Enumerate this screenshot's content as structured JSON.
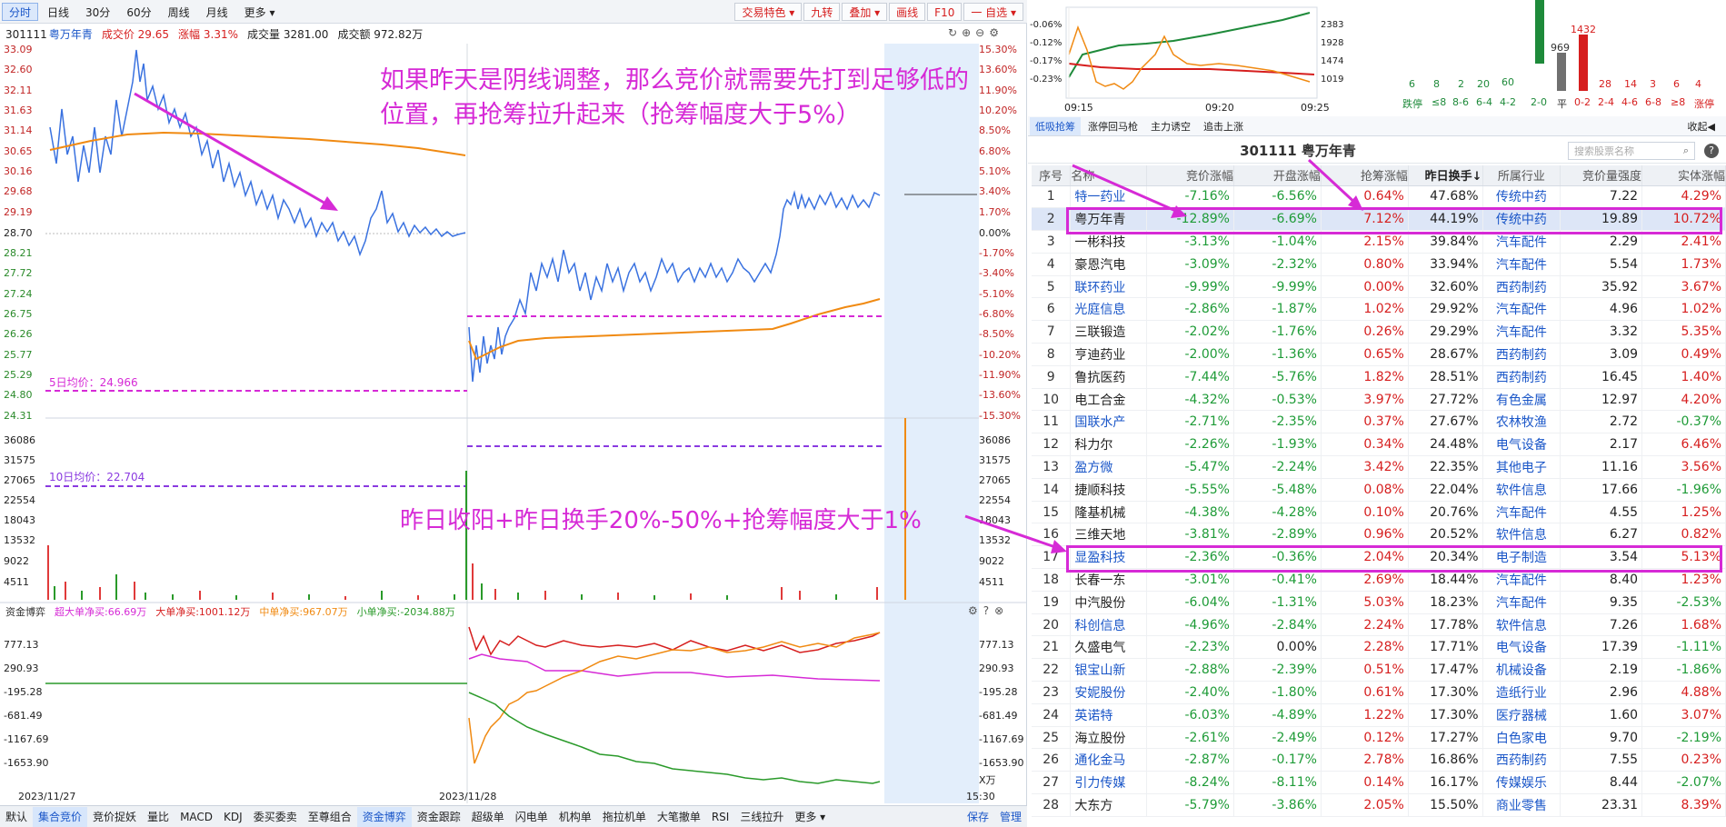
{
  "toolbar": {
    "periods": [
      "分时",
      "日线",
      "30分",
      "60分",
      "周线",
      "月线",
      "更多 ▾"
    ],
    "right": [
      "交易特色 ▾",
      "九转",
      "叠加 ▾",
      "画线",
      "F10",
      "一 自选 ▾"
    ]
  },
  "info": {
    "code": "301111",
    "name": "粤万年青",
    "price_label": "成交价",
    "price": "29.65",
    "change_label": "涨幅",
    "change": "3.31%",
    "vol": "成交量 3281.00",
    "amount": "成交额 972.82万"
  },
  "price_axis_left": [
    "33.09",
    "32.60",
    "32.11",
    "31.63",
    "31.14",
    "30.65",
    "30.16",
    "29.68",
    "29.19",
    "28.70",
    "28.21",
    "27.72",
    "27.24",
    "26.75",
    "26.26",
    "25.77",
    "25.29",
    "24.80",
    "24.31"
  ],
  "price_axis_right": [
    "15.30%",
    "13.60%",
    "11.90%",
    "10.20%",
    "8.50%",
    "6.80%",
    "5.10%",
    "3.40%",
    "1.70%",
    "0.00%",
    "-1.70%",
    "-3.40%",
    "-5.10%",
    "-6.80%",
    "-8.50%",
    "-10.20%",
    "-11.90%",
    "-13.60%",
    "-15.30%"
  ],
  "vol_axis": [
    "36086",
    "31575",
    "27065",
    "22554",
    "18043",
    "13532",
    "9022",
    "4511"
  ],
  "flow_axis": [
    "777.13",
    "290.93",
    "-195.28",
    "-681.49",
    "-1167.69",
    "-1653.90"
  ],
  "ma5": "5日均价：24.966",
  "ma10": "10日均价：22.704",
  "annot1": "如果昨天是阴线调整，那么竞价就需要先打到足够低的位置，再抢筹拉升起来（抢筹幅度大于5%）",
  "annot2": "昨日收阳+昨日换手20%-50%+抢筹幅度大于1%",
  "flow": {
    "title": "资金博弈",
    "a": "超大单净买:66.69万",
    "b": "大单净买:1001.12万",
    "c": "中单净买:967.07万",
    "d": "小单净买:-2034.88万"
  },
  "dates": [
    "2023/11/27",
    "2023/11/28",
    "15:30"
  ],
  "xunit": "X万",
  "bottom": [
    "默认",
    "集合竞价",
    "竞价捉妖",
    "量比",
    "MACD",
    "KDJ",
    "委买委卖",
    "至尊组合",
    "资金博弈",
    "资金跟踪",
    "超级单",
    "闪电单",
    "机构单",
    "拖拉机单",
    "大笔撤单",
    "RSI",
    "三线拉升",
    "更多 ▾"
  ],
  "bottom_right": [
    "保存",
    "管理"
  ],
  "mini": {
    "left_axis": [
      "-0.06%",
      "-0.12%",
      "-0.17%",
      "-0.23%"
    ],
    "right_axis": [
      "2383",
      "1928",
      "1474",
      "1019"
    ],
    "times": [
      "09:15",
      "09:20",
      "09:25"
    ]
  },
  "dist": {
    "counts": [
      "6",
      "8",
      "2",
      "20",
      "60",
      "",
      "969",
      "1432",
      "28",
      "14",
      "3",
      "6",
      "4"
    ],
    "labels": [
      "跌停",
      "≤8",
      "8-6",
      "6-4",
      "4-2",
      "2-0",
      "平",
      "0-2",
      "2-4",
      "4-6",
      "6-8",
      "≥8",
      "涨停"
    ]
  },
  "rtabs": [
    "低吸抢筹",
    "涨停回马枪",
    "主力诱空",
    "追击上涨"
  ],
  "collapse": "收起◀",
  "rtitle": "301111  粤万年青",
  "search_ph": "搜索股票名称",
  "columns": [
    "序号",
    "名称",
    "竞价涨幅",
    "开盘涨幅",
    "抢筹涨幅",
    "昨日换手↓",
    "所属行业",
    "竞价量强度",
    "实体涨幅"
  ],
  "rows": [
    [
      "1",
      "特一药业",
      "-7.16%",
      "-6.56%",
      "0.64%",
      "47.68%",
      "传统中药",
      "7.22",
      "4.29%"
    ],
    [
      "2",
      "粤万年青",
      "-12.89%",
      "-6.69%",
      "7.12%",
      "44.19%",
      "传统中药",
      "19.89",
      "10.72%"
    ],
    [
      "3",
      "一彬科技",
      "-3.13%",
      "-1.04%",
      "2.15%",
      "39.84%",
      "汽车配件",
      "2.29",
      "2.41%"
    ],
    [
      "4",
      "豪恩汽电",
      "-3.09%",
      "-2.32%",
      "0.80%",
      "33.94%",
      "汽车配件",
      "5.54",
      "1.73%"
    ],
    [
      "5",
      "联环药业",
      "-9.99%",
      "-9.99%",
      "0.00%",
      "32.60%",
      "西药制药",
      "35.92",
      "3.67%"
    ],
    [
      "6",
      "光庭信息",
      "-2.86%",
      "-1.87%",
      "1.02%",
      "29.92%",
      "汽车配件",
      "4.96",
      "1.02%"
    ],
    [
      "7",
      "三联锻造",
      "-2.02%",
      "-1.76%",
      "0.26%",
      "29.29%",
      "汽车配件",
      "3.32",
      "5.35%"
    ],
    [
      "8",
      "亨迪药业",
      "-2.00%",
      "-1.36%",
      "0.65%",
      "28.67%",
      "西药制药",
      "3.09",
      "0.49%"
    ],
    [
      "9",
      "鲁抗医药",
      "-7.44%",
      "-5.76%",
      "1.82%",
      "28.51%",
      "西药制药",
      "16.45",
      "1.40%"
    ],
    [
      "10",
      "电工合金",
      "-4.32%",
      "-0.53%",
      "3.97%",
      "27.72%",
      "有色金属",
      "12.97",
      "4.20%"
    ],
    [
      "11",
      "国联水产",
      "-2.71%",
      "-2.35%",
      "0.37%",
      "27.67%",
      "农林牧渔",
      "2.72",
      "-0.37%"
    ],
    [
      "12",
      "科力尔",
      "-2.26%",
      "-1.93%",
      "0.34%",
      "24.48%",
      "电气设备",
      "2.17",
      "6.46%"
    ],
    [
      "13",
      "盈方微",
      "-5.47%",
      "-2.24%",
      "3.42%",
      "22.35%",
      "其他电子",
      "11.16",
      "3.56%"
    ],
    [
      "14",
      "捷顺科技",
      "-5.55%",
      "-5.48%",
      "0.08%",
      "22.04%",
      "软件信息",
      "17.66",
      "-1.96%"
    ],
    [
      "15",
      "隆基机械",
      "-4.38%",
      "-4.28%",
      "0.10%",
      "20.76%",
      "汽车配件",
      "4.55",
      "1.25%"
    ],
    [
      "16",
      "三维天地",
      "-3.81%",
      "-2.89%",
      "0.96%",
      "20.52%",
      "软件信息",
      "6.27",
      "0.82%"
    ],
    [
      "17",
      "显盈科技",
      "-2.36%",
      "-0.36%",
      "2.04%",
      "20.34%",
      "电子制造",
      "3.54",
      "5.13%"
    ],
    [
      "18",
      "长春一东",
      "-3.01%",
      "-0.41%",
      "2.69%",
      "18.44%",
      "汽车配件",
      "8.40",
      "1.23%"
    ],
    [
      "19",
      "中汽股份",
      "-6.04%",
      "-1.31%",
      "5.03%",
      "18.23%",
      "汽车配件",
      "9.35",
      "-2.53%"
    ],
    [
      "20",
      "科创信息",
      "-4.96%",
      "-2.84%",
      "2.24%",
      "17.78%",
      "软件信息",
      "7.26",
      "1.68%"
    ],
    [
      "21",
      "久盛电气",
      "-2.23%",
      "0.00%",
      "2.28%",
      "17.71%",
      "电气设备",
      "17.39",
      "-1.11%"
    ],
    [
      "22",
      "银宝山新",
      "-2.88%",
      "-2.39%",
      "0.51%",
      "17.47%",
      "机械设备",
      "2.19",
      "-1.86%"
    ],
    [
      "23",
      "安妮股份",
      "-2.40%",
      "-1.80%",
      "0.61%",
      "17.30%",
      "造纸行业",
      "2.96",
      "4.88%"
    ],
    [
      "24",
      "英诺特",
      "-6.03%",
      "-4.89%",
      "1.22%",
      "17.30%",
      "医疗器械",
      "1.60",
      "3.07%"
    ],
    [
      "25",
      "海立股份",
      "-2.61%",
      "-2.49%",
      "0.12%",
      "17.27%",
      "白色家电",
      "9.70",
      "-2.19%"
    ],
    [
      "26",
      "通化金马",
      "-2.87%",
      "-0.17%",
      "2.78%",
      "16.86%",
      "西药制药",
      "7.55",
      "0.23%"
    ],
    [
      "27",
      "引力传媒",
      "-8.24%",
      "-8.11%",
      "0.14%",
      "16.17%",
      "传媒娱乐",
      "8.44",
      "-2.07%"
    ],
    [
      "28",
      "大东方",
      "-5.79%",
      "-3.86%",
      "2.05%",
      "15.50%",
      "商业零售",
      "23.31",
      "8.39%"
    ]
  ],
  "blue_names": [
    "1",
    "5",
    "6",
    "11",
    "13",
    "17",
    "20",
    "22",
    "23",
    "24",
    "26",
    "27"
  ]
}
